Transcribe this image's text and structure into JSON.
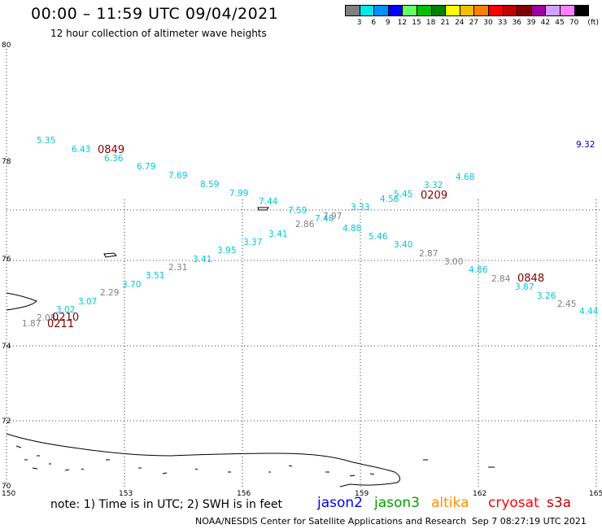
{
  "title": "00:00 – 11:59 UTC 09/04/2021",
  "subtitle": "12 hour collection of altimeter wave heights",
  "legend": {
    "unit": "(ft)",
    "bins": [
      {
        "label": "3",
        "color": "#808080"
      },
      {
        "label": "6",
        "color": "#00e8e8"
      },
      {
        "label": "9",
        "color": "#0090ff"
      },
      {
        "label": "12",
        "color": "#0000ff"
      },
      {
        "label": "15",
        "color": "#66ff66"
      },
      {
        "label": "18",
        "color": "#00c000"
      },
      {
        "label": "21",
        "color": "#008000"
      },
      {
        "label": "24",
        "color": "#ffff00"
      },
      {
        "label": "27",
        "color": "#f0c000"
      },
      {
        "label": "30",
        "color": "#ff8000"
      },
      {
        "label": "33",
        "color": "#ff0000"
      },
      {
        "label": "36",
        "color": "#c00000"
      },
      {
        "label": "39",
        "color": "#800000"
      },
      {
        "label": "42",
        "color": "#a000a0"
      },
      {
        "label": "45",
        "color": "#d0a0ff"
      },
      {
        "label": "70",
        "color": "#ff80ff"
      },
      {
        "label": "",
        "color": "#000000"
      }
    ]
  },
  "axes": {
    "lat_labels": [
      "80",
      "78",
      "76",
      "74",
      "72",
      "70"
    ],
    "lon_labels": [
      "150",
      "153",
      "156",
      "159",
      "162",
      "165"
    ]
  },
  "points": [
    {
      "v": "5.35",
      "c": "#00c8d8"
    },
    {
      "v": "6.43",
      "c": "#00c8d8"
    },
    {
      "v": "6.36",
      "c": "#00c8d8"
    },
    {
      "v": "6.79",
      "c": "#00c8d8"
    },
    {
      "v": "7.69",
      "c": "#00c8d8"
    },
    {
      "v": "8.59",
      "c": "#00c8d8"
    },
    {
      "v": "7.99",
      "c": "#00c8d8"
    },
    {
      "v": "7.44",
      "c": "#00c8d8"
    },
    {
      "v": "7.59",
      "c": "#00c8d8"
    },
    {
      "v": "7.48",
      "c": "#00c8d8"
    },
    {
      "v": "7.97",
      "c": "#808080"
    },
    {
      "v": "2.86",
      "c": "#808080"
    },
    {
      "v": "3.33",
      "c": "#00c8d8"
    },
    {
      "v": "4.56",
      "c": "#00c8d8"
    },
    {
      "v": "5.45",
      "c": "#00c8d8"
    },
    {
      "v": "3.32",
      "c": "#00c8d8"
    },
    {
      "v": "4.68",
      "c": "#00c8d8"
    },
    {
      "v": "4.88",
      "c": "#00c8d8"
    },
    {
      "v": "5.46",
      "c": "#00c8d8"
    },
    {
      "v": "3.40",
      "c": "#00c8d8"
    },
    {
      "v": "2.87",
      "c": "#808080"
    },
    {
      "v": "3.00",
      "c": "#808080"
    },
    {
      "v": "4.86",
      "c": "#00c8d8"
    },
    {
      "v": "2.84",
      "c": "#808080"
    },
    {
      "v": "3.87",
      "c": "#00c8d8"
    },
    {
      "v": "3.26",
      "c": "#00c8d8"
    },
    {
      "v": "2.45",
      "c": "#808080"
    },
    {
      "v": "4.44",
      "c": "#00c8d8"
    },
    {
      "v": "3.41",
      "c": "#00c8d8"
    },
    {
      "v": "3.37",
      "c": "#00c8d8"
    },
    {
      "v": "3.95",
      "c": "#00c8d8"
    },
    {
      "v": "3.41",
      "c": "#00c8d8"
    },
    {
      "v": "2.31",
      "c": "#808080"
    },
    {
      "v": "3.51",
      "c": "#00c8d8"
    },
    {
      "v": "3.70",
      "c": "#00c8d8"
    },
    {
      "v": "2.29",
      "c": "#808080"
    },
    {
      "v": "3.07",
      "c": "#00c8d8"
    },
    {
      "v": "3.02",
      "c": "#00c8d8"
    },
    {
      "v": "2.08",
      "c": "#808080"
    },
    {
      "v": "1.87",
      "c": "#808080"
    },
    {
      "v": "9.32",
      "c": "#0000c0"
    }
  ],
  "time_labels": [
    "0849",
    "0209",
    "0848",
    "0210",
    "0211"
  ],
  "note": "note:  1) Time is in UTC; 2) SWH is in feet",
  "satellites": [
    {
      "name": "jason2",
      "color": "#0000ff"
    },
    {
      "name": "jason3",
      "color": "#00a000"
    },
    {
      "name": "altika",
      "color": "#ff9000"
    },
    {
      "name": "cryosat",
      "color": "#ff0000"
    },
    {
      "name": "s3a",
      "color": "#c00000"
    }
  ],
  "credit": "NOAA/NESDIS Center for Satellite Applications and Research",
  "timestamp": "Sep  7 08:27:19 UTC 2021"
}
